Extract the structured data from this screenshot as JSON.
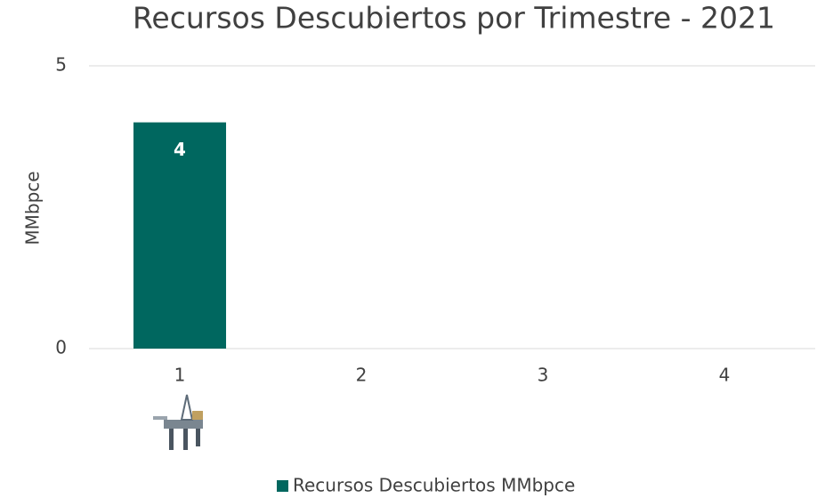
{
  "chart_data": {
    "type": "bar",
    "title": "Recursos Descubiertos por Trimestre - 2021",
    "y_label": "MMbpce",
    "categories": [
      "1",
      "2",
      "3",
      "4"
    ],
    "series": [
      {
        "name": "Recursos Descubiertos MMbpce",
        "color": "#00675f",
        "values": [
          4,
          null,
          null,
          null
        ]
      }
    ],
    "ylim": [
      0,
      5
    ],
    "yticks": [
      0,
      5
    ],
    "grid": true,
    "legend": "bottom"
  }
}
